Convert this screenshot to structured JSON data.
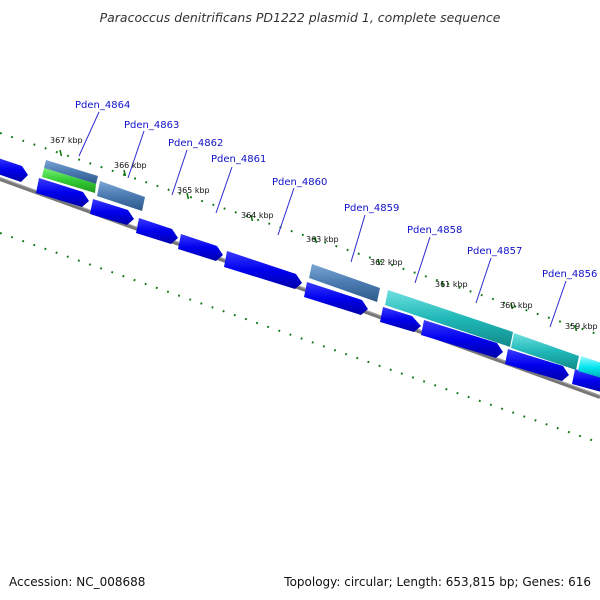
{
  "header": {
    "title": "Paracoccus denitrificans PD1222 plasmid 1, complete sequence"
  },
  "footer": {
    "accession": "Accession: NC_008688",
    "summary": "Topology: circular; Length: 653,815 bp; Genes: 616"
  },
  "colors": {
    "forward_cds": "#0000ee",
    "steelblue_feature": "#4a7ab0",
    "green_feature": "#33cc33",
    "teal_feature": "#20b8b8",
    "cyan_feature": "#00e5ee",
    "backbone": "#777777",
    "gc_dots": "#117711",
    "label_text": "#1010c8",
    "leader_line": "#2a2ad0"
  },
  "gene_labels": [
    {
      "label": "Pden_4864"
    },
    {
      "label": "Pden_4863"
    },
    {
      "label": "Pden_4862"
    },
    {
      "label": "Pden_4861"
    },
    {
      "label": "Pden_4860"
    },
    {
      "label": "Pden_4859"
    },
    {
      "label": "Pden_4858"
    },
    {
      "label": "Pden_4857"
    },
    {
      "label": "Pden_4856"
    }
  ],
  "tick_labels": [
    {
      "label": "367 kbp"
    },
    {
      "label": "366 kbp"
    },
    {
      "label": "365 kbp"
    },
    {
      "label": "364 kbp"
    },
    {
      "label": "363 kbp"
    },
    {
      "label": "362 kbp"
    },
    {
      "label": "361 kbp"
    },
    {
      "label": "360 kbp"
    },
    {
      "label": "359 kbp"
    }
  ]
}
